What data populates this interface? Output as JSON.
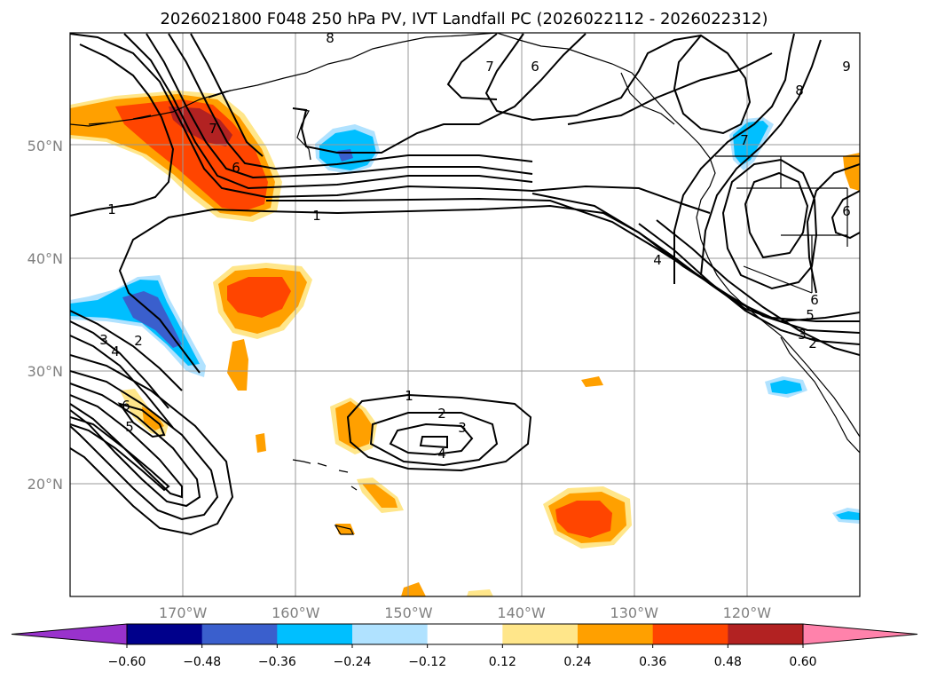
{
  "chart_data": {
    "type": "heatmap",
    "title": "2026021800 F048 250 hPa PV, IVT Landfall PC (2026022112 - 2026022312)",
    "map": {
      "lon_range": [
        -180,
        -110
      ],
      "lat_range": [
        10,
        60
      ],
      "lat_ticks": [
        "50°N",
        "40°N",
        "30°N",
        "20°N"
      ],
      "lon_ticks": [
        "170°W",
        "160°W",
        "150°W",
        "140°W",
        "130°W",
        "120°W"
      ]
    },
    "colorbar": {
      "levels": [
        -0.6,
        -0.48,
        -0.36,
        -0.24,
        -0.12,
        0.12,
        0.24,
        0.36,
        0.48,
        0.6
      ],
      "labels": [
        "−0.60",
        "−0.48",
        "−0.36",
        "−0.24",
        "−0.12",
        "0.12",
        "0.24",
        "0.36",
        "0.48",
        "0.60"
      ],
      "colors": [
        "#9932cc",
        "#00008b",
        "#3a5fcd",
        "#00bfff",
        "#b0e2ff",
        "#ffffff",
        "#ffe68a",
        "#ffa000",
        "#ff4500",
        "#b22222",
        "#ff82ab"
      ],
      "extend": "both"
    },
    "contour_labels": [
      "1",
      "1",
      "1",
      "2",
      "3",
      "4",
      "2",
      "3",
      "4",
      "6",
      "5",
      "4",
      "7",
      "6",
      "8",
      "7",
      "9",
      "6",
      "6",
      "5",
      "3",
      "2",
      "6",
      "7",
      "8"
    ],
    "shaded_features": [
      {
        "name": "north-pacific-positive-pv",
        "lon": -165,
        "lat": 52,
        "level": 0.48
      },
      {
        "name": "central-north-pacific-positive",
        "lon": -163,
        "lat": 37,
        "level": 0.36
      },
      {
        "name": "subtropical-positive-east",
        "lon": -134,
        "lat": 17,
        "level": 0.36
      },
      {
        "name": "dateline-negative",
        "lon": -175,
        "lat": 35,
        "level": -0.48
      },
      {
        "name": "gulf-negative",
        "lon": -154,
        "lat": 50,
        "level": -0.36
      },
      {
        "name": "pnw-negative",
        "lon": -120,
        "lat": 50,
        "level": -0.36
      }
    ]
  }
}
